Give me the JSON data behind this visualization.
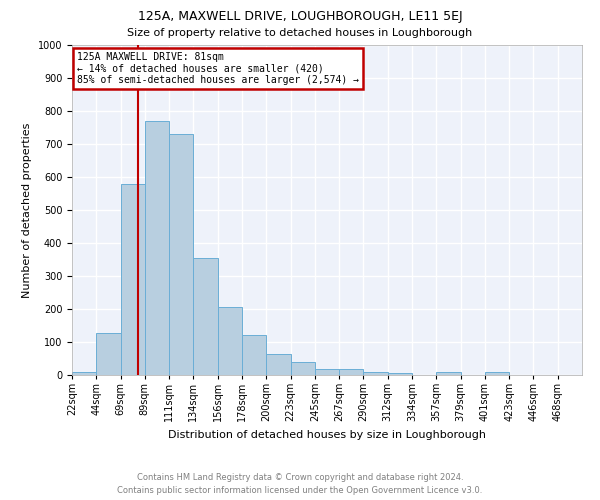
{
  "title": "125A, MAXWELL DRIVE, LOUGHBOROUGH, LE11 5EJ",
  "subtitle": "Size of property relative to detached houses in Loughborough",
  "xlabel": "Distribution of detached houses by size in Loughborough",
  "ylabel": "Number of detached properties",
  "footer_line1": "Contains HM Land Registry data © Crown copyright and database right 2024.",
  "footer_line2": "Contains public sector information licensed under the Open Government Licence v3.0.",
  "bin_labels": [
    "22sqm",
    "44sqm",
    "69sqm",
    "89sqm",
    "111sqm",
    "134sqm",
    "156sqm",
    "178sqm",
    "200sqm",
    "223sqm",
    "245sqm",
    "267sqm",
    "290sqm",
    "312sqm",
    "334sqm",
    "357sqm",
    "379sqm",
    "401sqm",
    "423sqm",
    "446sqm",
    "468sqm"
  ],
  "bar_heights": [
    10,
    128,
    580,
    770,
    730,
    355,
    205,
    120,
    63,
    38,
    18,
    17,
    9,
    7,
    0,
    8,
    0,
    8,
    0,
    0,
    0
  ],
  "bar_color": "#b8cfe0",
  "bar_edge_color": "#6aaed6",
  "property_line_index": 2.7,
  "annotation_title": "125A MAXWELL DRIVE: 81sqm",
  "annotation_line2": "← 14% of detached houses are smaller (420)",
  "annotation_line3": "85% of semi-detached houses are larger (2,574) →",
  "annotation_box_color": "#ffffff",
  "annotation_box_edge_color": "#c00000",
  "vline_color": "#c00000",
  "ylim": [
    0,
    1000
  ],
  "background_color": "#eef2fa",
  "grid_color": "#ffffff",
  "title_fontsize": 9,
  "subtitle_fontsize": 8,
  "ylabel_fontsize": 8,
  "xlabel_fontsize": 8,
  "tick_fontsize": 7,
  "footer_fontsize": 6
}
